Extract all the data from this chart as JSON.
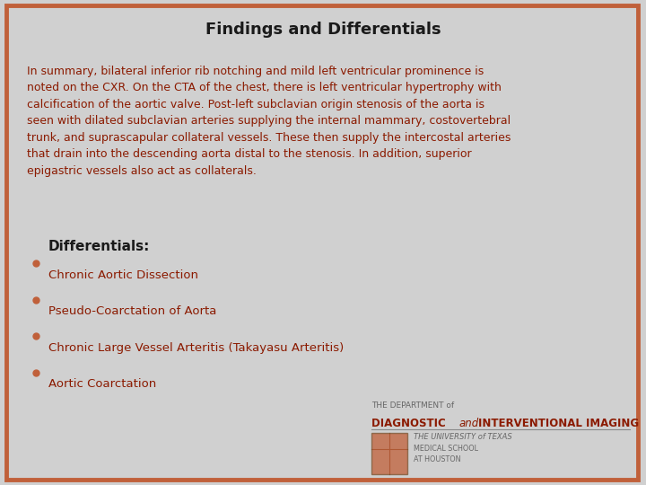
{
  "title": "Findings and Differentials",
  "title_color": "#1a1a1a",
  "background_color": "#d0d0d0",
  "border_color": "#c0603a",
  "text_color": "#8b1a00",
  "bullet_color": "#c0603a",
  "differentials_color": "#1a1a1a",
  "summary_text": "In summary, bilateral inferior rib notching and mild left ventricular prominence is\nnoted on the CXR. On the CTA of the chest, there is left ventricular hypertrophy with\ncalcification of the aortic valve. Post-left subclavian origin stenosis of the aorta is\nseen with dilated subclavian arteries supplying the internal mammary, costovertebral\ntrunk, and suprascapular collateral vessels. These then supply the intercostal arteries\nthat drain into the descending aorta distal to the stenosis. In addition, superior\nepigastric vessels also act as collaterals.",
  "differentials_label": "Differentials:",
  "bullets": [
    "Chronic Aortic Dissection",
    "Pseudo-Coarctation of Aorta",
    "Chronic Large Vessel Arteritis (Takayasu Arteritis)",
    "Aortic Coarctation"
  ],
  "logo_line1": "THE DEPARTMENT of",
  "logo_line2_bold": "DIAGNOSTIC ",
  "logo_line2_italic": "and",
  "logo_line2_rest": "  INTERVENTIONAL IMAGING",
  "logo_line3": "THE UNIVERSITY of TEXAS",
  "logo_line4": "MEDICAL SCHOOL",
  "logo_line5": "AT HOUSTON",
  "logo_color": "#8b1a00",
  "logo_small_color": "#666666"
}
